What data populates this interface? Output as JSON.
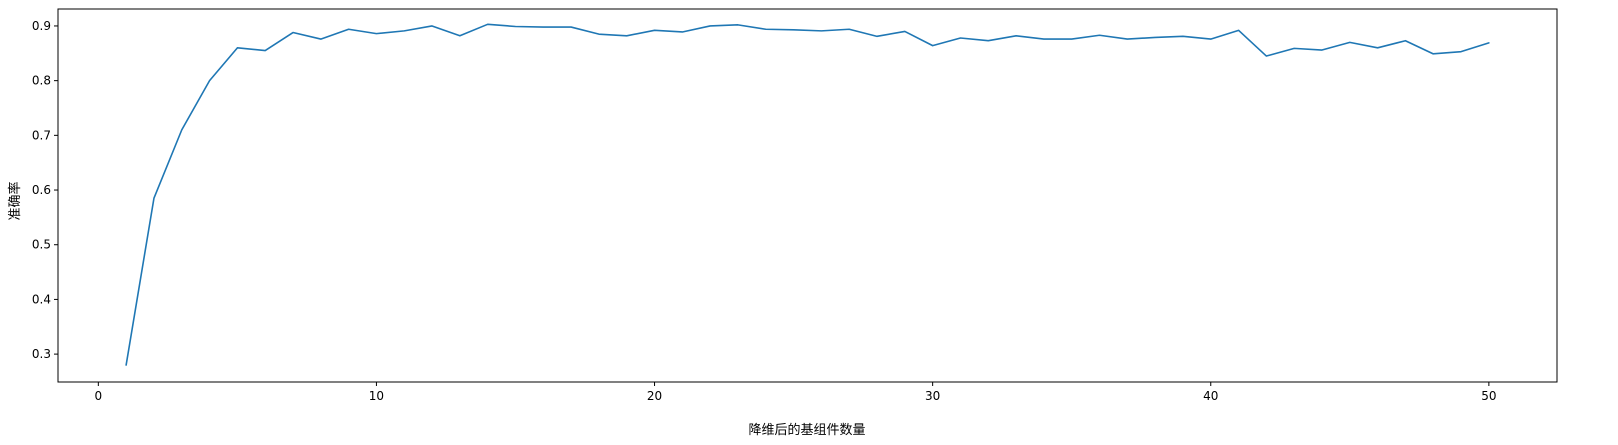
{
  "chart_data": {
    "type": "line",
    "title": "",
    "xlabel": "降维后的基组件数量",
    "ylabel": "准确率",
    "xlim": [
      -1.45,
      52.45
    ],
    "ylim": [
      0.249,
      0.931
    ],
    "x_ticks": [
      0,
      10,
      20,
      30,
      40,
      50
    ],
    "y_ticks": [
      0.3,
      0.4,
      0.5,
      0.6,
      0.7,
      0.8,
      0.9
    ],
    "grid": false,
    "legend": "none",
    "colors": {
      "line": "#1f77b4",
      "axes": "#000000"
    },
    "series": [
      {
        "x": [
          1,
          2,
          3,
          4,
          5,
          6,
          7,
          8,
          9,
          10,
          11,
          12,
          13,
          14,
          15,
          16,
          17,
          18,
          19,
          20,
          21,
          22,
          23,
          24,
          25,
          26,
          27,
          28,
          29,
          30,
          31,
          32,
          33,
          34,
          35,
          36,
          37,
          38,
          39,
          40,
          41,
          42,
          43,
          44,
          45,
          46,
          47,
          48,
          49,
          50
        ],
        "values": [
          0.28,
          0.585,
          0.71,
          0.8,
          0.86,
          0.855,
          0.888,
          0.876,
          0.894,
          0.886,
          0.891,
          0.9,
          0.882,
          0.903,
          0.899,
          0.898,
          0.898,
          0.885,
          0.882,
          0.892,
          0.889,
          0.9,
          0.902,
          0.894,
          0.893,
          0.891,
          0.894,
          0.881,
          0.89,
          0.864,
          0.878,
          0.873,
          0.882,
          0.876,
          0.876,
          0.883,
          0.876,
          0.879,
          0.881,
          0.876,
          0.892,
          0.845,
          0.859,
          0.856,
          0.87,
          0.86,
          0.873,
          0.849,
          0.853,
          0.869
        ]
      }
    ]
  }
}
